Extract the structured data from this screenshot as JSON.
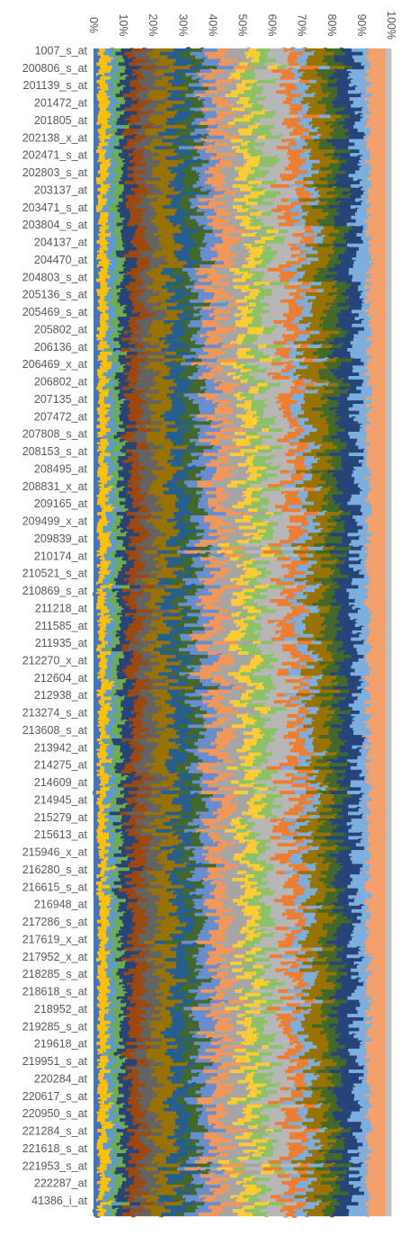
{
  "chart_data": {
    "type": "bar",
    "orientation": "horizontal",
    "stacked": "percent",
    "style": "dot-and-stem segments (lollipop-style stacked 100% bars)",
    "xaxis": {
      "position": "top",
      "ticks": [
        "0%",
        "10%",
        "20%",
        "30%",
        "40%",
        "50%",
        "60%",
        "70%",
        "80%",
        "90%",
        "100%"
      ],
      "range": [
        0,
        100
      ],
      "tick_label_rotation": "vertical"
    },
    "grid": false,
    "legend": "none",
    "category_labels": [
      "1007_s_at",
      "200806_s_at",
      "201139_s_at",
      "201472_at",
      "201805_at",
      "202138_x_at",
      "202471_s_at",
      "202803_s_at",
      "203137_at",
      "203471_s_at",
      "203804_s_at",
      "204137_at",
      "204470_at",
      "204803_s_at",
      "205136_s_at",
      "205469_s_at",
      "205802_at",
      "206136_at",
      "206469_x_at",
      "206802_at",
      "207135_at",
      "207472_at",
      "207808_s_at",
      "208153_s_at",
      "208495_at",
      "208831_x_at",
      "209165_at",
      "209499_x_at",
      "209839_at",
      "210174_at",
      "210521_s_at",
      "210869_s_at",
      "211218_at",
      "211585_at",
      "211935_at",
      "212270_x_at",
      "212604_at",
      "212938_at",
      "213274_s_at",
      "213608_s_at",
      "213942_at",
      "214275_at",
      "214609_at",
      "214945_at",
      "215279_at",
      "215613_at",
      "215946_x_at",
      "216280_s_at",
      "216615_s_at",
      "216948_at",
      "217286_s_at",
      "217619_x_at",
      "217952_x_at",
      "218285_s_at",
      "218618_s_at",
      "218952_at",
      "219285_s_at",
      "219618_at",
      "219951_s_at",
      "220284_at",
      "220617_s_at",
      "220950_s_at",
      "221284_s_at",
      "221618_s_at",
      "221953_s_at",
      "222287_at",
      "41386_i_at"
    ],
    "label_interval_rows": 5,
    "row_count": 335,
    "series_colors": [
      "#4472C4",
      "#ED7D31",
      "#A5A5A5",
      "#FFC000",
      "#5B9BD5",
      "#70AD47",
      "#264478",
      "#9E480E",
      "#636363",
      "#997300",
      "#255E91",
      "#43682B",
      "#698ED0",
      "#F1975A",
      "#B7B7B7",
      "#FFCD33",
      "#7CAFDD",
      "#8CC168"
    ],
    "series_shares_percent": [
      [
        "#4472C4",
        1.5
      ],
      [
        "#FFC000",
        2.5
      ],
      [
        "#5B9BD5",
        2.0
      ],
      [
        "#70AD47",
        2.0
      ],
      [
        "#264478",
        3.0
      ],
      [
        "#9E480E",
        3.5
      ],
      [
        "#636363",
        4.0
      ],
      [
        "#997300",
        5.0
      ],
      [
        "#255E91",
        4.0
      ],
      [
        "#43682B",
        3.5
      ],
      [
        "#698ED0",
        4.0
      ],
      [
        "#F1975A",
        4.5
      ],
      [
        "#A5A5A5",
        5.0
      ],
      [
        "#FFCD33",
        3.5
      ],
      [
        "#8CC168",
        4.0
      ],
      [
        "#B7B7B7",
        6.0
      ],
      [
        "#ED7D31",
        4.0
      ],
      [
        "#7CAFDD",
        3.0
      ],
      [
        "#997300",
        5.0
      ],
      [
        "#43682B",
        4.0
      ],
      [
        "#264478",
        5.0
      ],
      [
        "#698ED0",
        7.0
      ],
      [
        "#F1975A",
        7.0
      ],
      [
        "#B7B7B7",
        2.0
      ]
    ]
  }
}
